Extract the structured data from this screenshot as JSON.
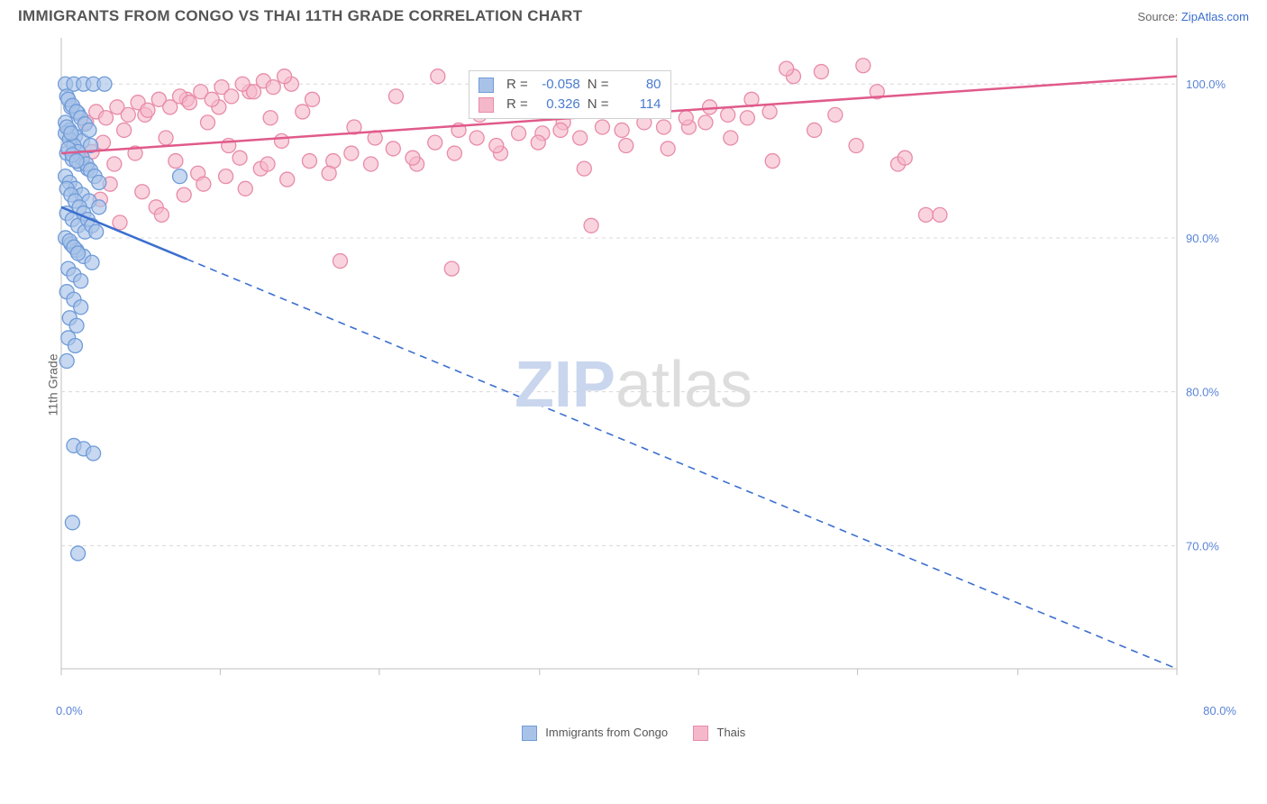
{
  "title": "IMMIGRANTS FROM CONGO VS THAI 11TH GRADE CORRELATION CHART",
  "source_label": "Source:",
  "source_name": "ZipAtlas.com",
  "ylabel": "11th Grade",
  "watermark_bold": "ZIP",
  "watermark_light": "atlas",
  "chart": {
    "type": "scatter-with-trend",
    "background_color": "#ffffff",
    "grid_color": "#d8d8d8",
    "axis_color": "#bfbfbf",
    "tick_label_color": "#5a84d6",
    "tick_fontsize": 13,
    "xlim": [
      0,
      80
    ],
    "ylim": [
      62,
      103
    ],
    "xticks": [
      0,
      11.4,
      22.8,
      34.3,
      45.7,
      57.1,
      68.6,
      80
    ],
    "ygrid": [
      70,
      80,
      90,
      100
    ],
    "ylabels": [
      "70.0%",
      "80.0%",
      "90.0%",
      "100.0%"
    ],
    "xstart_label": "0.0%",
    "xend_label": "80.0%",
    "series": [
      {
        "name": "Immigrants from Congo",
        "marker_color_fill": "#a9c3e8",
        "marker_color_stroke": "#6f9bd8",
        "marker_opacity": 0.65,
        "marker_radius": 8,
        "line_color": "#3b6fcf",
        "line_width": 2.5,
        "line_dash_after_x": 9,
        "trend_y_at_x0": 92.0,
        "trend_y_at_x80": 62.0,
        "R": "-0.058",
        "N": "80",
        "points": [
          [
            0.3,
            100
          ],
          [
            0.9,
            100
          ],
          [
            1.6,
            100
          ],
          [
            2.3,
            100
          ],
          [
            3.1,
            100
          ],
          [
            0.4,
            99.2
          ],
          [
            0.7,
            98.5
          ],
          [
            1.2,
            98.1
          ],
          [
            0.3,
            97.5
          ],
          [
            0.6,
            97.0
          ],
          [
            1.0,
            96.6
          ],
          [
            1.5,
            96.3
          ],
          [
            2.1,
            96.0
          ],
          [
            0.4,
            95.5
          ],
          [
            0.8,
            95.1
          ],
          [
            1.3,
            94.8
          ],
          [
            1.9,
            94.5
          ],
          [
            0.3,
            94.0
          ],
          [
            0.6,
            93.6
          ],
          [
            1.0,
            93.2
          ],
          [
            1.5,
            92.8
          ],
          [
            2.0,
            92.4
          ],
          [
            2.7,
            92.0
          ],
          [
            8.5,
            94.0
          ],
          [
            0.4,
            91.6
          ],
          [
            0.8,
            91.2
          ],
          [
            1.2,
            90.8
          ],
          [
            1.7,
            90.4
          ],
          [
            0.3,
            90.0
          ],
          [
            0.7,
            89.6
          ],
          [
            1.1,
            89.2
          ],
          [
            1.6,
            88.8
          ],
          [
            2.2,
            88.4
          ],
          [
            0.5,
            88.0
          ],
          [
            0.9,
            87.6
          ],
          [
            1.4,
            87.2
          ],
          [
            0.4,
            86.5
          ],
          [
            0.9,
            86.0
          ],
          [
            1.4,
            85.5
          ],
          [
            0.6,
            84.8
          ],
          [
            1.1,
            84.3
          ],
          [
            0.5,
            83.5
          ],
          [
            1.0,
            83.0
          ],
          [
            0.4,
            82.0
          ],
          [
            0.9,
            76.5
          ],
          [
            1.6,
            76.3
          ],
          [
            2.3,
            76.0
          ],
          [
            0.8,
            71.5
          ],
          [
            1.2,
            69.5
          ],
          [
            0.3,
            96.8
          ],
          [
            0.6,
            96.4
          ],
          [
            0.9,
            96.0
          ],
          [
            1.2,
            95.6
          ],
          [
            1.5,
            95.2
          ],
          [
            1.8,
            94.8
          ],
          [
            2.1,
            94.4
          ],
          [
            2.4,
            94.0
          ],
          [
            2.7,
            93.6
          ],
          [
            0.4,
            93.2
          ],
          [
            0.7,
            92.8
          ],
          [
            1.0,
            92.4
          ],
          [
            1.3,
            92.0
          ],
          [
            1.6,
            91.6
          ],
          [
            1.9,
            91.2
          ],
          [
            2.2,
            90.8
          ],
          [
            2.5,
            90.4
          ],
          [
            0.5,
            99.0
          ],
          [
            0.8,
            98.6
          ],
          [
            1.1,
            98.2
          ],
          [
            1.4,
            97.8
          ],
          [
            1.7,
            97.4
          ],
          [
            2.0,
            97.0
          ],
          [
            0.6,
            89.8
          ],
          [
            0.9,
            89.4
          ],
          [
            1.2,
            89.0
          ],
          [
            0.5,
            95.8
          ],
          [
            0.8,
            95.4
          ],
          [
            1.1,
            95.0
          ],
          [
            0.4,
            97.2
          ],
          [
            0.7,
            96.8
          ]
        ]
      },
      {
        "name": "Thais",
        "marker_color_fill": "#f5b8ca",
        "marker_color_stroke": "#e88ba8",
        "marker_opacity": 0.6,
        "marker_radius": 8,
        "line_color": "#e05a8a",
        "line_width": 2.5,
        "line_dash_after_x": 999,
        "trend_y_at_x0": 95.5,
        "trend_y_at_x80": 100.5,
        "R": "0.326",
        "N": "114",
        "points": [
          [
            1.5,
            95.0
          ],
          [
            2.2,
            95.6
          ],
          [
            3.0,
            96.2
          ],
          [
            3.8,
            94.8
          ],
          [
            4.5,
            97.0
          ],
          [
            5.3,
            95.5
          ],
          [
            6.0,
            98.0
          ],
          [
            6.8,
            92.0
          ],
          [
            7.5,
            96.5
          ],
          [
            8.2,
            95.0
          ],
          [
            9.0,
            99.0
          ],
          [
            9.8,
            94.2
          ],
          [
            10.5,
            97.5
          ],
          [
            11.3,
            98.5
          ],
          [
            12.0,
            96.0
          ],
          [
            12.8,
            95.2
          ],
          [
            13.5,
            99.5
          ],
          [
            14.3,
            94.5
          ],
          [
            15.0,
            97.8
          ],
          [
            15.8,
            96.3
          ],
          [
            16.5,
            100.0
          ],
          [
            18.0,
            99.0
          ],
          [
            19.5,
            95.0
          ],
          [
            17.3,
            98.2
          ],
          [
            21.0,
            97.2
          ],
          [
            22.5,
            96.5
          ],
          [
            24.0,
            99.2
          ],
          [
            25.5,
            94.8
          ],
          [
            27.0,
            100.5
          ],
          [
            28.5,
            97.0
          ],
          [
            30.0,
            98.0
          ],
          [
            20.0,
            88.5
          ],
          [
            31.5,
            95.5
          ],
          [
            33.0,
            99.5
          ],
          [
            34.5,
            96.8
          ],
          [
            36.0,
            97.5
          ],
          [
            37.5,
            94.5
          ],
          [
            39.0,
            98.8
          ],
          [
            40.5,
            96.0
          ],
          [
            42.0,
            100.0
          ],
          [
            43.5,
            95.8
          ],
          [
            45.0,
            97.2
          ],
          [
            46.5,
            98.5
          ],
          [
            48.0,
            96.5
          ],
          [
            49.5,
            99.0
          ],
          [
            51.0,
            95.0
          ],
          [
            52.5,
            100.5
          ],
          [
            54.0,
            97.0
          ],
          [
            55.5,
            98.0
          ],
          [
            57.0,
            96.0
          ],
          [
            58.5,
            99.5
          ],
          [
            60.0,
            94.8
          ],
          [
            62.0,
            91.5
          ],
          [
            38.0,
            90.8
          ],
          [
            4.2,
            91.0
          ],
          [
            2.8,
            92.5
          ],
          [
            3.5,
            93.5
          ],
          [
            5.8,
            93.0
          ],
          [
            7.2,
            91.5
          ],
          [
            8.8,
            92.8
          ],
          [
            10.2,
            93.5
          ],
          [
            11.8,
            94.0
          ],
          [
            13.2,
            93.2
          ],
          [
            14.8,
            94.8
          ],
          [
            16.2,
            93.8
          ],
          [
            17.8,
            95.0
          ],
          [
            19.2,
            94.2
          ],
          [
            20.8,
            95.5
          ],
          [
            22.2,
            94.8
          ],
          [
            23.8,
            95.8
          ],
          [
            25.2,
            95.2
          ],
          [
            26.8,
            96.2
          ],
          [
            28.2,
            95.5
          ],
          [
            29.8,
            96.5
          ],
          [
            31.2,
            96.0
          ],
          [
            32.8,
            96.8
          ],
          [
            34.2,
            96.2
          ],
          [
            35.8,
            97.0
          ],
          [
            37.2,
            96.5
          ],
          [
            38.8,
            97.2
          ],
          [
            40.2,
            97.0
          ],
          [
            41.8,
            97.5
          ],
          [
            43.2,
            97.2
          ],
          [
            44.8,
            97.8
          ],
          [
            46.2,
            97.5
          ],
          [
            47.8,
            98.0
          ],
          [
            49.2,
            97.8
          ],
          [
            50.8,
            98.2
          ],
          [
            1.8,
            97.5
          ],
          [
            2.5,
            98.2
          ],
          [
            3.2,
            97.8
          ],
          [
            4.0,
            98.5
          ],
          [
            4.8,
            98.0
          ],
          [
            5.5,
            98.8
          ],
          [
            6.2,
            98.3
          ],
          [
            7.0,
            99.0
          ],
          [
            7.8,
            98.5
          ],
          [
            8.5,
            99.2
          ],
          [
            9.2,
            98.8
          ],
          [
            10.0,
            99.5
          ],
          [
            10.8,
            99.0
          ],
          [
            11.5,
            99.8
          ],
          [
            12.2,
            99.2
          ],
          [
            13.0,
            100.0
          ],
          [
            13.8,
            99.5
          ],
          [
            14.5,
            100.2
          ],
          [
            15.2,
            99.8
          ],
          [
            16.0,
            100.5
          ],
          [
            52.0,
            101.0
          ],
          [
            54.5,
            100.8
          ],
          [
            57.5,
            101.2
          ],
          [
            60.5,
            95.2
          ],
          [
            28.0,
            88.0
          ],
          [
            63.0,
            91.5
          ]
        ]
      }
    ],
    "legend": {
      "series1_sw_fill": "#a9c3e8",
      "series1_sw_stroke": "#6f9bd8",
      "series2_sw_fill": "#f5b8ca",
      "series2_sw_stroke": "#e88ba8"
    },
    "stats_box": {
      "row1_R_label": "R =",
      "row1_N_label": "N =",
      "row2_R_label": "R =",
      "row2_N_label": "N ="
    }
  }
}
